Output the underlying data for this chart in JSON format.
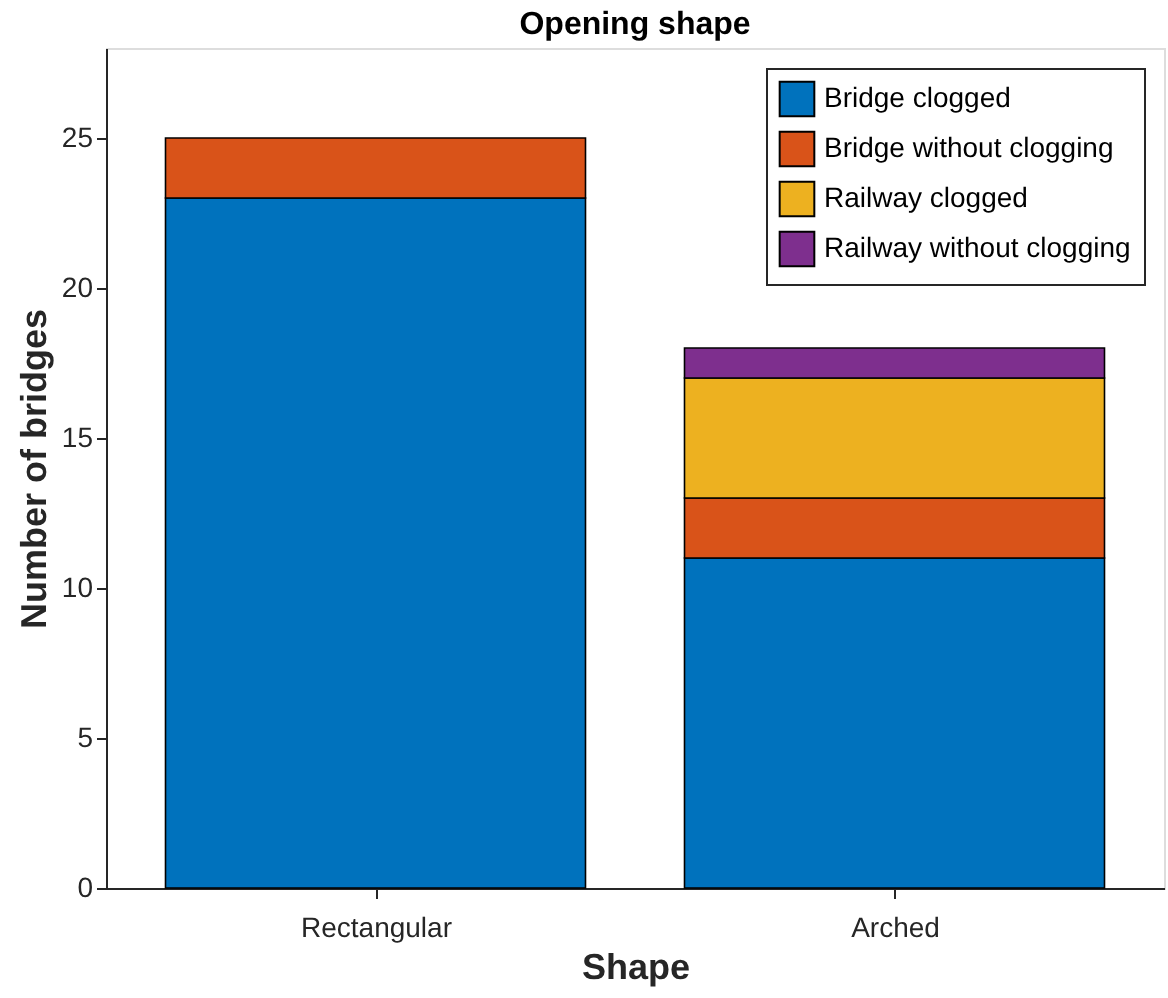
{
  "chart_data": {
    "type": "bar",
    "title": "Opening shape",
    "xlabel": "Shape",
    "ylabel": "Number of bridges",
    "categories": [
      "Rectangular",
      "Arched"
    ],
    "stacked": true,
    "series": [
      {
        "name": "Bridge clogged",
        "color": "#0072bd",
        "values": [
          23,
          11
        ]
      },
      {
        "name": "Bridge without clogging",
        "color": "#d95319",
        "values": [
          2,
          2
        ]
      },
      {
        "name": "Railway clogged",
        "color": "#edb120",
        "values": [
          0,
          4
        ]
      },
      {
        "name": "Railway without clogging",
        "color": "#7e2f8e",
        "values": [
          0,
          1
        ]
      }
    ],
    "ylim": [
      0,
      28
    ],
    "yticks": [
      0,
      5,
      10,
      15,
      20,
      25
    ],
    "grid": false,
    "legend": "top right"
  }
}
